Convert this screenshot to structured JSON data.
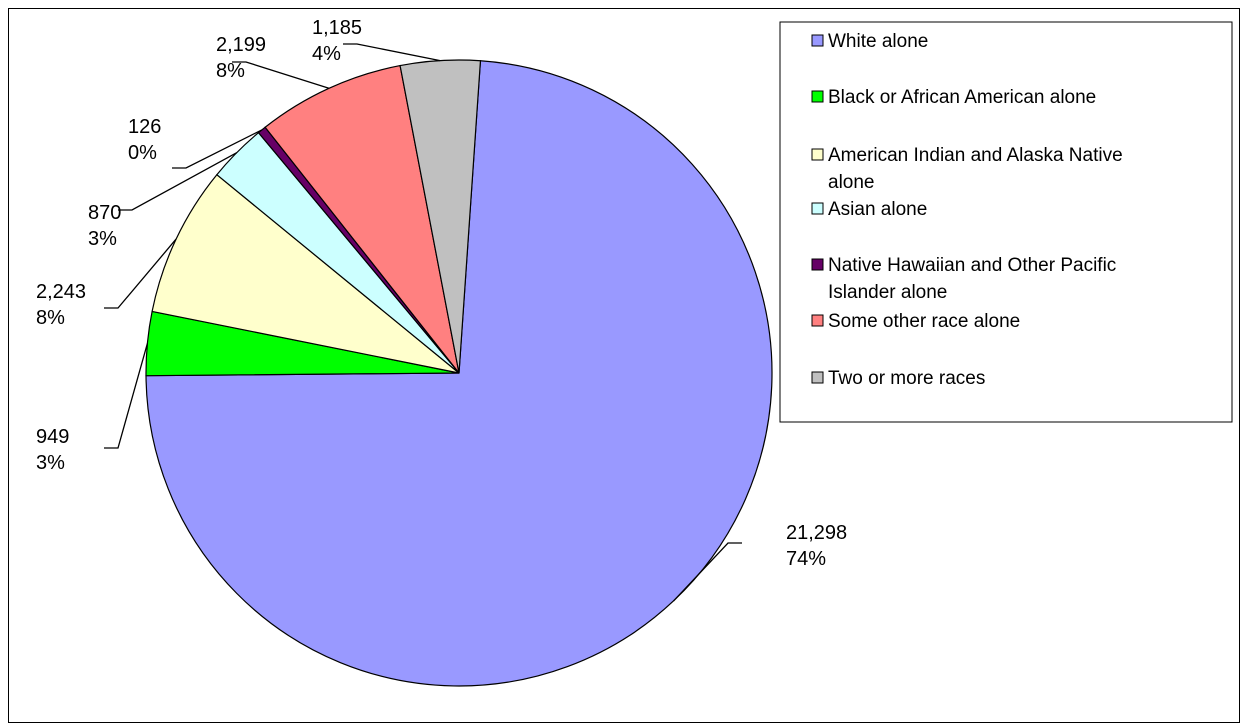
{
  "chart_data": {
    "type": "pie",
    "title": "",
    "slices": [
      {
        "label": "White alone",
        "value": 21298,
        "value_text": "21,298",
        "pct_text": "74%",
        "color": "#9999ff"
      },
      {
        "label": "Black or African American alone",
        "value": 949,
        "value_text": "949",
        "pct_text": "3%",
        "color": "#00ff00"
      },
      {
        "label": "American Indian and Alaska Native alone",
        "value": 2243,
        "value_text": "2,243",
        "pct_text": "8%",
        "color": "#ffffcc"
      },
      {
        "label": "Asian alone",
        "value": 870,
        "value_text": "870",
        "pct_text": "3%",
        "color": "#ccffff"
      },
      {
        "label": "Native Hawaiian and Other Pacific Islander alone",
        "value": 126,
        "value_text": "126",
        "pct_text": "0%",
        "color": "#660066"
      },
      {
        "label": "Some other race alone",
        "value": 2199,
        "value_text": "2,199",
        "pct_text": "8%",
        "color": "#ff8080"
      },
      {
        "label": "Two or more races",
        "value": 1185,
        "value_text": "1,185",
        "pct_text": "4%",
        "color": "#c0c0c0"
      }
    ],
    "legend": {
      "placement": "right",
      "entries": [
        [
          "White alone"
        ],
        [
          "Black or African American alone"
        ],
        [
          "American Indian and Alaska Native",
          "alone"
        ],
        [
          "Asian alone"
        ],
        [
          "Native Hawaiian and Other Pacific",
          "Islander alone"
        ],
        [
          "Some other race alone"
        ],
        [
          "Two or more races"
        ]
      ]
    }
  }
}
